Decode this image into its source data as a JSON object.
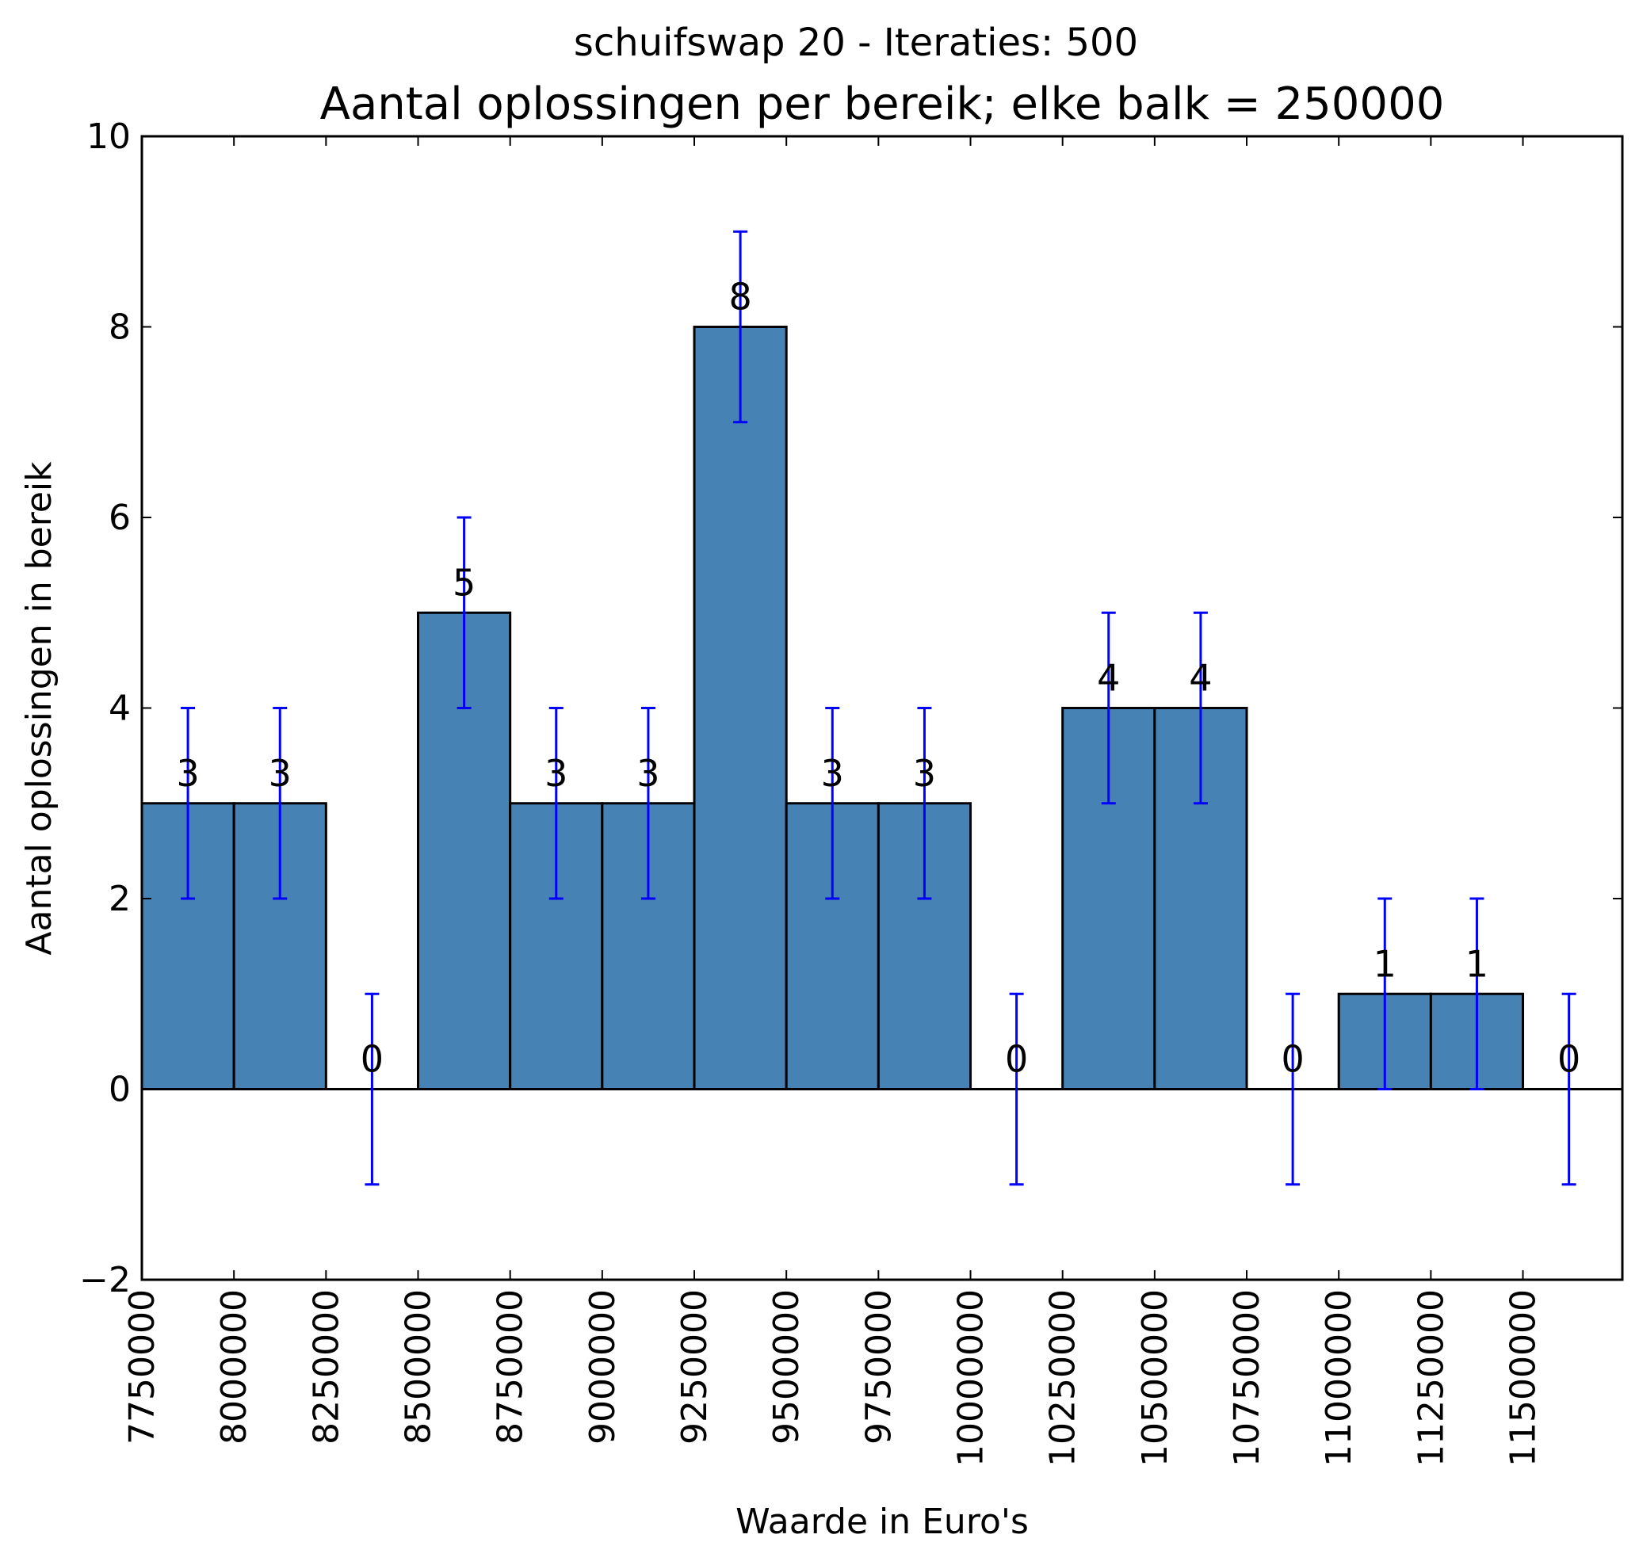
{
  "chart_data": {
    "type": "bar",
    "suptitle": "schuifswap 20 - Iteraties: 500",
    "title": "Aantal oplossingen per bereik; elke balk = 250000",
    "xlabel": "Waarde in Euro's",
    "ylabel": "Aantal oplossingen in bereik",
    "bin_edges": [
      7750000,
      8000000,
      8250000,
      8500000,
      8750000,
      9000000,
      9250000,
      9500000,
      9750000,
      10000000,
      10250000,
      10500000,
      10750000,
      11000000,
      11250000,
      11500000,
      11750000
    ],
    "values": [
      3,
      3,
      0,
      5,
      3,
      3,
      8,
      3,
      3,
      0,
      4,
      4,
      0,
      1,
      1,
      0
    ],
    "errors": [
      1,
      1,
      1,
      1,
      1,
      1,
      1,
      1,
      1,
      1,
      1,
      1,
      1,
      1,
      1,
      1
    ],
    "bar_labels": [
      "3",
      "3",
      "0",
      "5",
      "3",
      "3",
      "8",
      "3",
      "3",
      "0",
      "4",
      "4",
      "0",
      "1",
      "1",
      "0"
    ],
    "xlim": [
      7750000,
      11770000
    ],
    "ylim": [
      -2,
      10
    ],
    "xticks": [
      7750000,
      8000000,
      8250000,
      8500000,
      8750000,
      9000000,
      9250000,
      9500000,
      9750000,
      10000000,
      10250000,
      10500000,
      10750000,
      11000000,
      11250000,
      11500000
    ],
    "xtick_labels": [
      "7750000",
      "8000000",
      "8250000",
      "8500000",
      "8750000",
      "9000000",
      "9250000",
      "9500000",
      "9750000",
      "10000000",
      "10250000",
      "10500000",
      "10750000",
      "11000000",
      "11250000",
      "11500000"
    ],
    "yticks": [
      -2,
      0,
      2,
      4,
      6,
      8,
      10
    ],
    "ytick_labels": [
      "−2",
      "0",
      "2",
      "4",
      "6",
      "8",
      "10"
    ],
    "grid": false,
    "bar_color": "#4682b4",
    "error_color": "#0000ff",
    "zero_line": true
  }
}
